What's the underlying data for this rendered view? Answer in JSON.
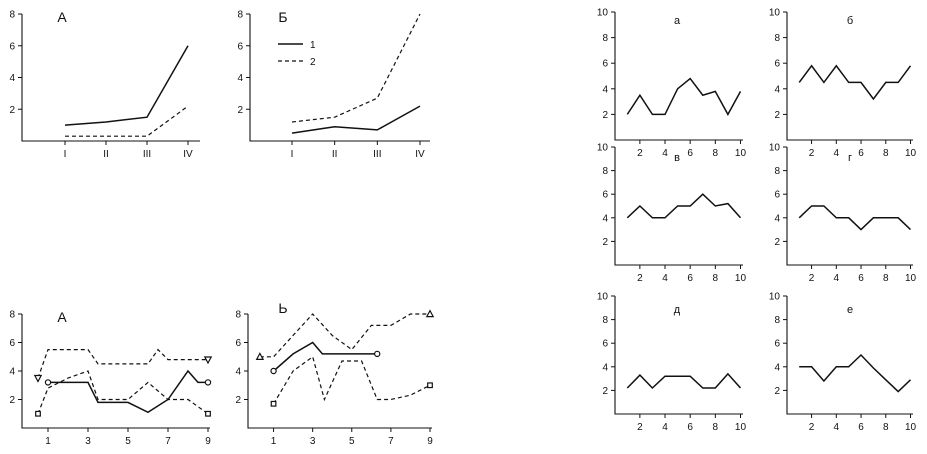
{
  "chart_data": [
    {
      "id": "top-a",
      "type": "line",
      "title": "А",
      "categories": [
        "I",
        "II",
        "III",
        "IV"
      ],
      "ylim": [
        0,
        8
      ],
      "yticks": [
        2,
        4,
        6,
        8
      ],
      "series": [
        {
          "values": [
            1.0,
            1.2,
            1.5,
            6.0
          ],
          "style": "solid"
        },
        {
          "values": [
            0.3,
            0.3,
            0.3,
            2.2
          ],
          "style": "dashed"
        }
      ]
    },
    {
      "id": "top-b",
      "type": "line",
      "title": "Б",
      "categories": [
        "I",
        "II",
        "III",
        "IV"
      ],
      "ylim": [
        0,
        8
      ],
      "yticks": [
        2,
        4,
        6,
        8
      ],
      "legend": [
        {
          "label": "1",
          "style": "solid"
        },
        {
          "label": "2",
          "style": "dashed"
        }
      ],
      "series": [
        {
          "name": "1",
          "values": [
            0.5,
            0.9,
            0.7,
            2.2
          ],
          "style": "solid"
        },
        {
          "name": "2",
          "values": [
            1.2,
            1.5,
            2.7,
            8.0
          ],
          "style": "dashed"
        }
      ]
    },
    {
      "id": "bottom-a",
      "type": "line",
      "title": "А",
      "xlim": [
        0,
        9
      ],
      "xticks": [
        1,
        3,
        5,
        7,
        9
      ],
      "ylim": [
        0,
        8
      ],
      "yticks": [
        2,
        4,
        6,
        8
      ],
      "series": [
        {
          "style": "solid",
          "marker": "circle",
          "x": [
            1,
            2,
            3,
            3.5,
            5,
            6,
            7,
            8,
            8.5,
            9
          ],
          "y": [
            3.2,
            3.2,
            3.2,
            1.8,
            1.8,
            1.1,
            2.0,
            4.0,
            3.2,
            3.2
          ]
        },
        {
          "style": "dashed",
          "marker": "triangle-down",
          "x": [
            0.5,
            1,
            2,
            3,
            3.5,
            5,
            6,
            6.5,
            7,
            8,
            9
          ],
          "y": [
            3.5,
            5.5,
            5.5,
            5.5,
            4.5,
            4.5,
            4.5,
            5.5,
            4.8,
            4.8,
            4.8
          ]
        },
        {
          "style": "dashed",
          "marker": "square",
          "x": [
            0.5,
            1,
            2,
            3,
            3.5,
            5,
            6,
            7,
            8,
            9
          ],
          "y": [
            1.0,
            2.8,
            3.5,
            4.0,
            2.0,
            2.0,
            3.2,
            2.0,
            2.0,
            1.0
          ]
        }
      ]
    },
    {
      "id": "bottom-b",
      "type": "line",
      "title": "Ь",
      "xlim": [
        0,
        9
      ],
      "xticks": [
        1,
        3,
        5,
        7,
        9
      ],
      "ylim": [
        0,
        8
      ],
      "yticks": [
        2,
        4,
        6,
        8
      ],
      "series": [
        {
          "style": "solid",
          "marker": "circle",
          "x": [
            1,
            2,
            3,
            3.5,
            6.3
          ],
          "y": [
            4.0,
            5.2,
            6.0,
            5.2,
            5.2
          ]
        },
        {
          "style": "dashed",
          "marker": "triangle-up",
          "x": [
            0.3,
            1,
            2,
            3,
            4,
            5,
            6,
            7,
            8,
            9
          ],
          "y": [
            5.0,
            5.0,
            6.5,
            8.0,
            6.5,
            5.5,
            7.2,
            7.2,
            8.0,
            8.0
          ]
        },
        {
          "style": "dashed",
          "marker": "square",
          "x": [
            1,
            2,
            3,
            3.6,
            4.5,
            5.5,
            6.3,
            7,
            8,
            9
          ],
          "y": [
            1.7,
            4.0,
            5.0,
            2.0,
            4.7,
            4.7,
            2.0,
            2.0,
            2.3,
            3.0
          ]
        }
      ]
    },
    {
      "id": "right-a",
      "type": "line",
      "title": "а",
      "ylim": [
        0,
        10
      ],
      "yticks": [
        2,
        4,
        6,
        8,
        10
      ],
      "xticks": [
        2,
        4,
        6,
        8,
        10
      ],
      "x": [
        1,
        2,
        3,
        4,
        5,
        6,
        7,
        8,
        9,
        10
      ],
      "values": [
        2.0,
        3.5,
        2.0,
        2.0,
        4.0,
        4.8,
        3.5,
        3.8,
        2.0,
        3.8
      ]
    },
    {
      "id": "right-b",
      "type": "line",
      "title": "б",
      "ylim": [
        0,
        10
      ],
      "yticks": [
        2,
        4,
        6,
        8,
        10
      ],
      "xticks": [
        2,
        4,
        6,
        8,
        10
      ],
      "x": [
        1,
        2,
        3,
        4,
        5,
        6,
        7,
        8,
        9,
        10
      ],
      "values": [
        4.5,
        5.8,
        4.5,
        5.8,
        4.5,
        4.5,
        3.2,
        4.5,
        4.5,
        5.8
      ]
    },
    {
      "id": "right-v",
      "type": "line",
      "title": "в",
      "ylim": [
        0,
        10
      ],
      "yticks": [
        2,
        4,
        6,
        8,
        10
      ],
      "xticks": [
        2,
        4,
        6,
        8,
        10
      ],
      "x": [
        1,
        2,
        3,
        4,
        5,
        6,
        7,
        8,
        9,
        10
      ],
      "values": [
        4.0,
        5.0,
        4.0,
        4.0,
        5.0,
        5.0,
        6.0,
        5.0,
        5.2,
        4.0
      ]
    },
    {
      "id": "right-g",
      "type": "line",
      "title": "г",
      "ylim": [
        0,
        10
      ],
      "yticks": [
        2,
        4,
        6,
        8,
        10
      ],
      "xticks": [
        2,
        4,
        6,
        8,
        10
      ],
      "x": [
        1,
        2,
        3,
        4,
        5,
        6,
        7,
        8,
        9,
        10
      ],
      "values": [
        4.0,
        5.0,
        5.0,
        4.0,
        4.0,
        3.0,
        4.0,
        4.0,
        4.0,
        3.0
      ]
    },
    {
      "id": "right-d",
      "type": "line",
      "title": "д",
      "ylim": [
        0,
        10
      ],
      "yticks": [
        2,
        4,
        6,
        8,
        10
      ],
      "xticks": [
        2,
        4,
        6,
        8,
        10
      ],
      "x": [
        1,
        2,
        3,
        4,
        5,
        6,
        7,
        8,
        9,
        10
      ],
      "values": [
        2.2,
        3.3,
        2.2,
        3.2,
        3.2,
        3.2,
        2.2,
        2.2,
        3.4,
        2.2
      ]
    },
    {
      "id": "right-e",
      "type": "line",
      "title": "е",
      "ylim": [
        0,
        10
      ],
      "yticks": [
        2,
        4,
        6,
        8,
        10
      ],
      "xticks": [
        2,
        4,
        6,
        8,
        10
      ],
      "x": [
        1,
        2,
        3,
        4,
        5,
        6,
        7,
        8,
        9,
        10
      ],
      "values": [
        4.0,
        4.0,
        2.8,
        4.0,
        4.0,
        5.0,
        3.9,
        2.9,
        1.9,
        2.9
      ]
    }
  ]
}
